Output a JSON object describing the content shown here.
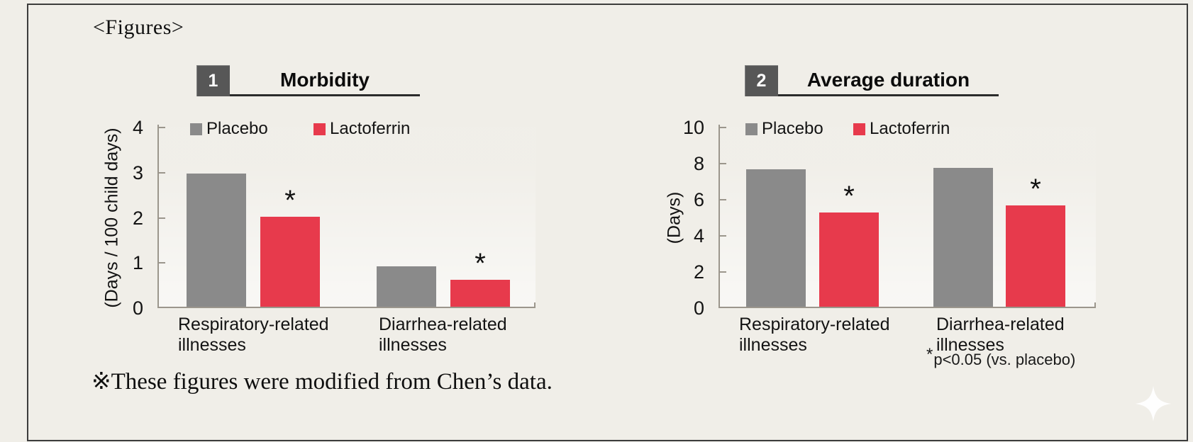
{
  "page": {
    "figures_label": "<Figures>",
    "footer_note": "※These figures were modified from Chen’s data.",
    "background_color": "#f0eee8",
    "border_color": "#3c3c3c"
  },
  "colors": {
    "placebo": "#8a8a8a",
    "lactoferrin": "#e73a4c",
    "badge_bg": "#575757",
    "badge_text": "#ffffff",
    "axis": "#9b968c",
    "text": "#141414"
  },
  "footnote": {
    "star": "*",
    "text": "p<0.05 (vs. placebo)"
  },
  "decor": {
    "sparkle_icon": "four-point-star",
    "sparkle_color": "#ffffff"
  },
  "chart_data": [
    {
      "type": "bar",
      "number": "1",
      "title": "Morbidity",
      "ylabel": "(Days / 100 child days)",
      "xlabel": "",
      "ylim": [
        0,
        4
      ],
      "yticks": [
        0,
        1,
        2,
        3,
        4
      ],
      "grid": false,
      "legend_position": "top",
      "sig_marker": "*",
      "categories": [
        "Respiratory-related illnesses",
        "Diarrhea-related illnesses"
      ],
      "series": [
        {
          "name": "Placebo",
          "color_key": "placebo",
          "values": [
            2.95,
            0.9
          ],
          "significant": [
            false,
            false
          ]
        },
        {
          "name": "Lactoferrin",
          "color_key": "lactoferrin",
          "values": [
            2.0,
            0.6
          ],
          "significant": [
            true,
            true
          ]
        }
      ]
    },
    {
      "type": "bar",
      "number": "2",
      "title": "Average duration",
      "ylabel": "(Days)",
      "xlabel": "",
      "ylim": [
        0,
        10
      ],
      "yticks": [
        0,
        2,
        4,
        6,
        8,
        10
      ],
      "grid": false,
      "legend_position": "top",
      "sig_marker": "*",
      "categories": [
        "Respiratory-related illnesses",
        "Diarrhea-related illnesses"
      ],
      "series": [
        {
          "name": "Placebo",
          "color_key": "placebo",
          "values": [
            7.6,
            7.7
          ],
          "significant": [
            false,
            false
          ]
        },
        {
          "name": "Lactoferrin",
          "color_key": "lactoferrin",
          "values": [
            5.2,
            5.6
          ],
          "significant": [
            true,
            true
          ]
        }
      ]
    }
  ]
}
